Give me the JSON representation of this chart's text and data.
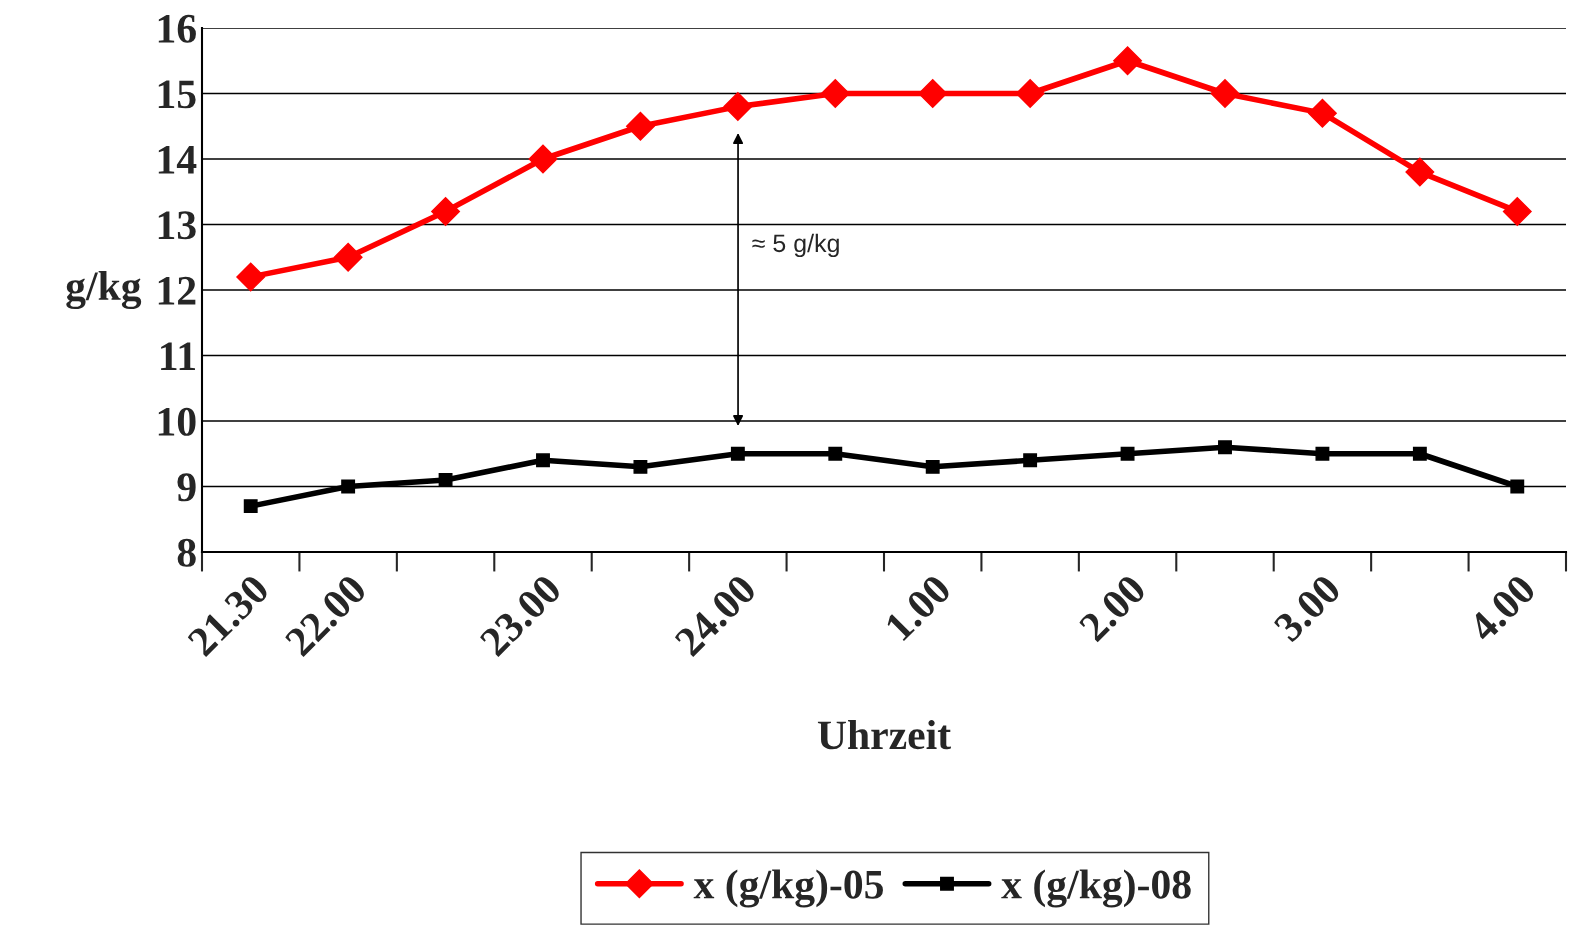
{
  "chart_data": {
    "type": "line",
    "xlabel": "Uhrzeit",
    "ylabel": "g/kg",
    "categories": [
      "21.30",
      "22.00",
      null,
      "23.00",
      null,
      "24.00",
      null,
      "1.00",
      null,
      "2.00",
      null,
      "3.00",
      null,
      "4.00"
    ],
    "series": [
      {
        "name": "x (g/kg)-05",
        "color": "#ff0000",
        "marker": "diamond",
        "values": [
          12.2,
          12.5,
          13.2,
          14.0,
          14.5,
          14.8,
          15.0,
          15.0,
          15.0,
          15.5,
          15.0,
          14.7,
          13.8,
          13.2
        ]
      },
      {
        "name": "x (g/kg)-08",
        "color": "#000000",
        "marker": "square",
        "values": [
          8.7,
          9.0,
          9.1,
          9.4,
          9.3,
          9.5,
          9.5,
          9.3,
          9.4,
          9.5,
          9.6,
          9.5,
          9.5,
          9.0
        ]
      }
    ],
    "ylim": [
      8,
      16
    ],
    "yticks": [
      8,
      9,
      10,
      11,
      12,
      13,
      14,
      15,
      16
    ],
    "grid": "y",
    "legend": "bottom",
    "line_style": "solid",
    "annotations": [
      "≈ 5 g/kg"
    ]
  }
}
